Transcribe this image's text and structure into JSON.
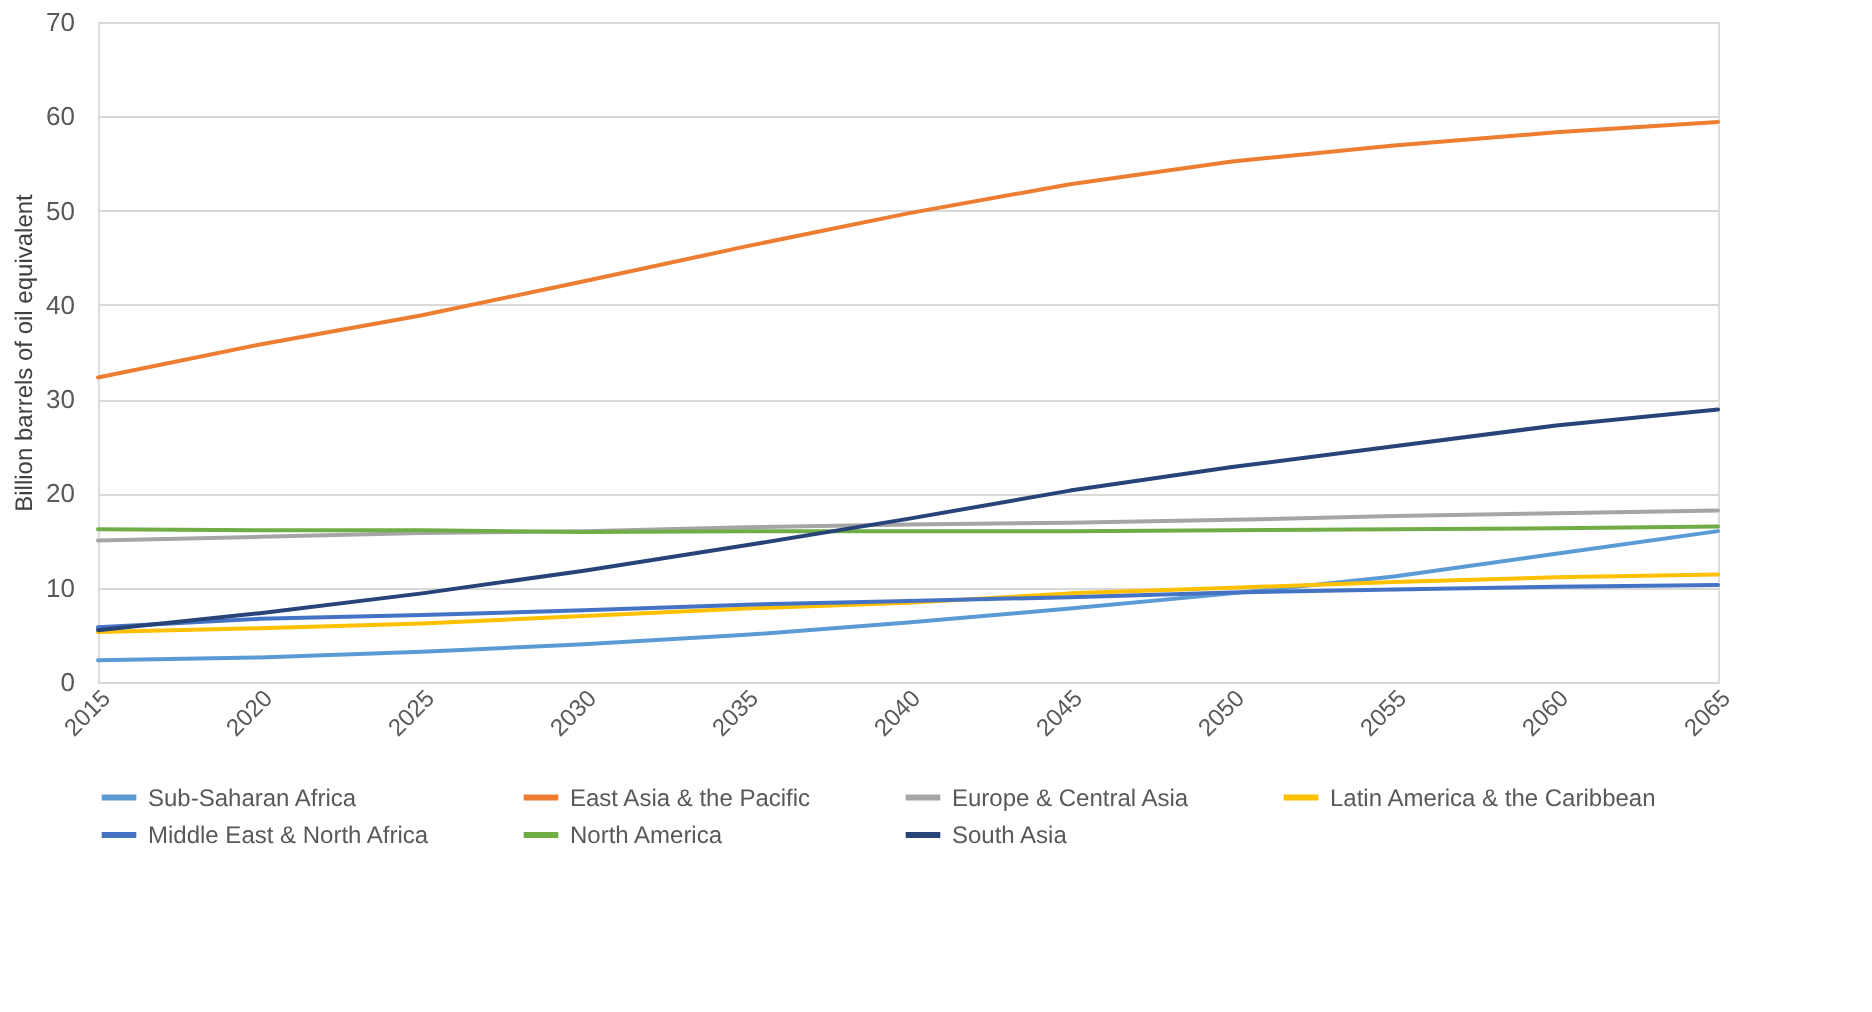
{
  "chart_data": {
    "type": "line",
    "ylabel": "Billion barrels of oil equivalent",
    "x": [
      2015,
      2020,
      2025,
      2030,
      2035,
      2040,
      2045,
      2050,
      2055,
      2060,
      2065
    ],
    "xlim": [
      2015,
      2065
    ],
    "xticks": [
      2015,
      2020,
      2025,
      2030,
      2035,
      2040,
      2045,
      2050,
      2055,
      2060,
      2065
    ],
    "ylim": [
      0,
      70
    ],
    "yticks": [
      0,
      10,
      20,
      30,
      40,
      50,
      60,
      70
    ],
    "grid": "y",
    "legend": "bottom",
    "marker": "none",
    "line_style": "solid",
    "series": [
      {
        "name": "Sub-Saharan Africa",
        "color": "#5b9bd5",
        "values": [
          2.3,
          2.6,
          3.2,
          4.0,
          5.0,
          6.3,
          7.8,
          9.4,
          11.2,
          13.6,
          16.0
        ]
      },
      {
        "name": "East Asia & the Pacific",
        "color": "#ed7d31",
        "values": [
          32.3,
          35.8,
          38.9,
          42.5,
          46.2,
          49.7,
          52.8,
          55.2,
          56.9,
          58.3,
          59.4
        ]
      },
      {
        "name": "Europe & Central Asia",
        "color": "#a5a5a5",
        "values": [
          15.0,
          15.4,
          15.8,
          16.0,
          16.4,
          16.7,
          16.9,
          17.2,
          17.6,
          17.9,
          18.2
        ]
      },
      {
        "name": "Latin America & the Caribbean",
        "color": "#ffc000",
        "values": [
          5.3,
          5.7,
          6.2,
          7.0,
          7.8,
          8.4,
          9.4,
          10.0,
          10.6,
          11.1,
          11.4
        ]
      },
      {
        "name": "Middle East & North Africa",
        "color": "#4472c4",
        "values": [
          5.8,
          6.7,
          7.1,
          7.6,
          8.2,
          8.6,
          9.0,
          9.5,
          9.8,
          10.1,
          10.3
        ]
      },
      {
        "name": "North America",
        "color": "#70ad47",
        "values": [
          16.2,
          16.1,
          16.1,
          15.9,
          16.0,
          16.0,
          16.0,
          16.1,
          16.2,
          16.3,
          16.5
        ]
      },
      {
        "name": "South Asia",
        "color": "#264478",
        "values": [
          5.5,
          7.3,
          9.4,
          11.8,
          14.5,
          17.3,
          20.3,
          22.8,
          25.0,
          27.2,
          28.9
        ]
      }
    ]
  }
}
